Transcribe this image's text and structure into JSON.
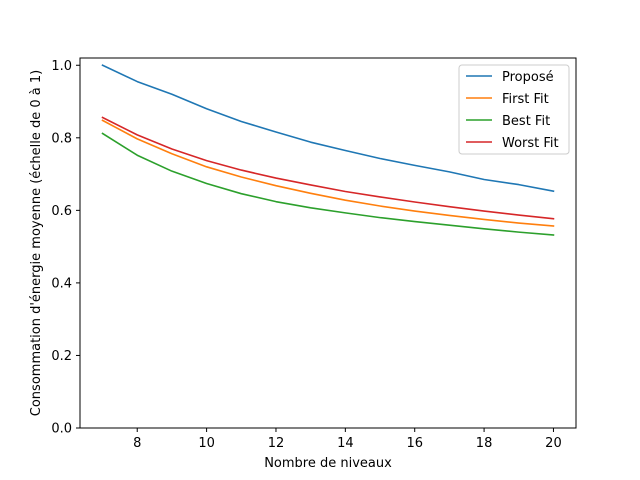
{
  "chart_data": {
    "type": "line",
    "title": "",
    "xlabel": "Nombre de niveaux",
    "ylabel": "Consommation d'énergie moyenne (échelle de 0 à 1)",
    "xlim": [
      6.35,
      20.65
    ],
    "ylim": [
      0.0,
      1.02
    ],
    "xticks": [
      8,
      10,
      12,
      14,
      16,
      18,
      20
    ],
    "yticks": [
      0.0,
      0.2,
      0.4,
      0.6,
      0.8,
      1.0
    ],
    "xtick_labels": [
      "8",
      "10",
      "12",
      "14",
      "16",
      "18",
      "20"
    ],
    "ytick_labels": [
      "0.0",
      "0.2",
      "0.4",
      "0.6",
      "0.8",
      "1.0"
    ],
    "grid": false,
    "legend_position": "top-right",
    "x": [
      7,
      8,
      9,
      10,
      11,
      12,
      13,
      14,
      15,
      16,
      17,
      18,
      19,
      20
    ],
    "series": [
      {
        "name": "Proposé",
        "color": "#1f77b4",
        "values": [
          1.0,
          0.955,
          0.92,
          0.88,
          0.845,
          0.816,
          0.788,
          0.765,
          0.743,
          0.724,
          0.706,
          0.685,
          0.671,
          0.653
        ]
      },
      {
        "name": "First Fit",
        "color": "#ff7f0e",
        "values": [
          0.848,
          0.797,
          0.756,
          0.72,
          0.692,
          0.668,
          0.647,
          0.628,
          0.612,
          0.598,
          0.586,
          0.575,
          0.565,
          0.557
        ]
      },
      {
        "name": "Best Fit",
        "color": "#2ca02c",
        "values": [
          0.812,
          0.752,
          0.708,
          0.674,
          0.646,
          0.624,
          0.607,
          0.593,
          0.58,
          0.569,
          0.559,
          0.549,
          0.54,
          0.532
        ]
      },
      {
        "name": "Worst Fit",
        "color": "#d62728",
        "values": [
          0.856,
          0.808,
          0.769,
          0.737,
          0.711,
          0.689,
          0.67,
          0.652,
          0.637,
          0.623,
          0.61,
          0.598,
          0.587,
          0.577
        ]
      }
    ]
  }
}
